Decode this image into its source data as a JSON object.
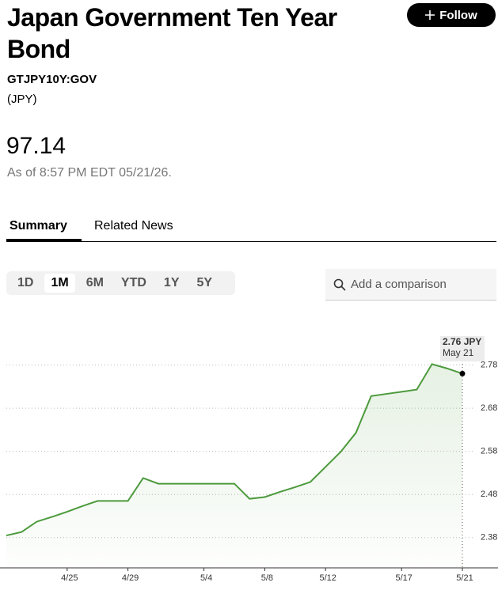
{
  "header": {
    "title": "Japan Government Ten Year Bond",
    "ticker": "GTJPY10Y:GOV",
    "currency": "(JPY)",
    "price": "97.14",
    "as_of": "As of 8:57 PM EDT 05/21/26.",
    "follow": "Follow"
  },
  "tabs": [
    "Summary",
    "Related News"
  ],
  "ranges": [
    "1D",
    "1M",
    "6M",
    "YTD",
    "1Y",
    "5Y"
  ],
  "search_placeholder": "Add a comparison",
  "chart_data": {
    "type": "line",
    "categories": [
      null,
      null,
      null,
      null,
      "4/25",
      null,
      null,
      null,
      "4/29",
      null,
      null,
      null,
      null,
      "5/4",
      null,
      null,
      null,
      "5/8",
      null,
      null,
      null,
      "5/12",
      null,
      null,
      null,
      null,
      "5/17",
      null,
      null,
      null,
      "5/21"
    ],
    "series": [
      {
        "name": "GTJPY10Y:GOV",
        "color": "#4c9a3c",
        "values": [
          2.385,
          2.393,
          2.417,
          2.428,
          2.44,
          2.453,
          2.465,
          2.465,
          2.465,
          2.518,
          2.505,
          2.505,
          2.505,
          2.505,
          2.505,
          2.505,
          2.47,
          2.474,
          2.486,
          2.497,
          2.509,
          2.544,
          2.579,
          2.623,
          2.708,
          2.713,
          2.718,
          2.723,
          2.782,
          2.772,
          2.76
        ]
      }
    ],
    "ylim": [
      2.31,
      2.9
    ],
    "yticks": [
      2.38,
      2.48,
      2.58,
      2.68,
      2.78
    ],
    "grid": true,
    "tooltip_label": "2.76 JPY",
    "tooltip_date": "May 21"
  }
}
